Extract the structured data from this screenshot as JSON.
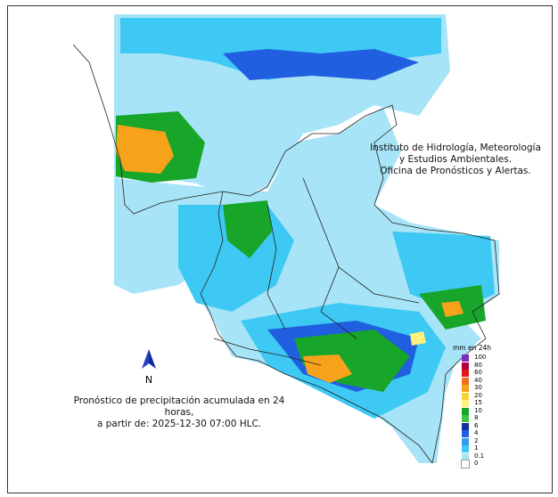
{
  "institute_text": {
    "line1": "Instituto de Hidrología, Meteorología",
    "line2": "y Estudios Ambientales.",
    "line3": "Oficina de Pronósticos y Alertas."
  },
  "forecast_text": {
    "line1": "Pronóstico de precipitación acumulada en 24 horas,",
    "line2": "a partir de: 2025-12-30 07:00 HLC."
  },
  "north_arrow": {
    "label": "N"
  },
  "legend": {
    "title": "mm en 24h",
    "items": [
      {
        "label": "100",
        "color": "#7b2fbe"
      },
      {
        "label": "80",
        "color": "#b0003a"
      },
      {
        "label": "60",
        "color": "#e4141c"
      },
      {
        "label": "40",
        "color": "#f06e1e"
      },
      {
        "label": "30",
        "color": "#f7a21b"
      },
      {
        "label": "20",
        "color": "#f8d23a"
      },
      {
        "label": "15",
        "color": "#fff27a"
      },
      {
        "label": "10",
        "color": "#17a52a"
      },
      {
        "label": "8",
        "color": "#3dc544"
      },
      {
        "label": "6",
        "color": "#12309e"
      },
      {
        "label": "4",
        "color": "#1f5fe0"
      },
      {
        "label": "2",
        "color": "#2f9ff0"
      },
      {
        "label": "1",
        "color": "#3ec9f5"
      },
      {
        "label": "0.1",
        "color": "#a8e4f7"
      },
      {
        "label": "0",
        "color": "#ffffff"
      }
    ]
  },
  "colors": {
    "light_rain": "#a8e4f7",
    "cyan_rain": "#3ec9f5",
    "blue_rain": "#1f5fe0",
    "green_rain": "#17a52a",
    "orange_rain": "#f7a21b",
    "border": "#222222"
  }
}
